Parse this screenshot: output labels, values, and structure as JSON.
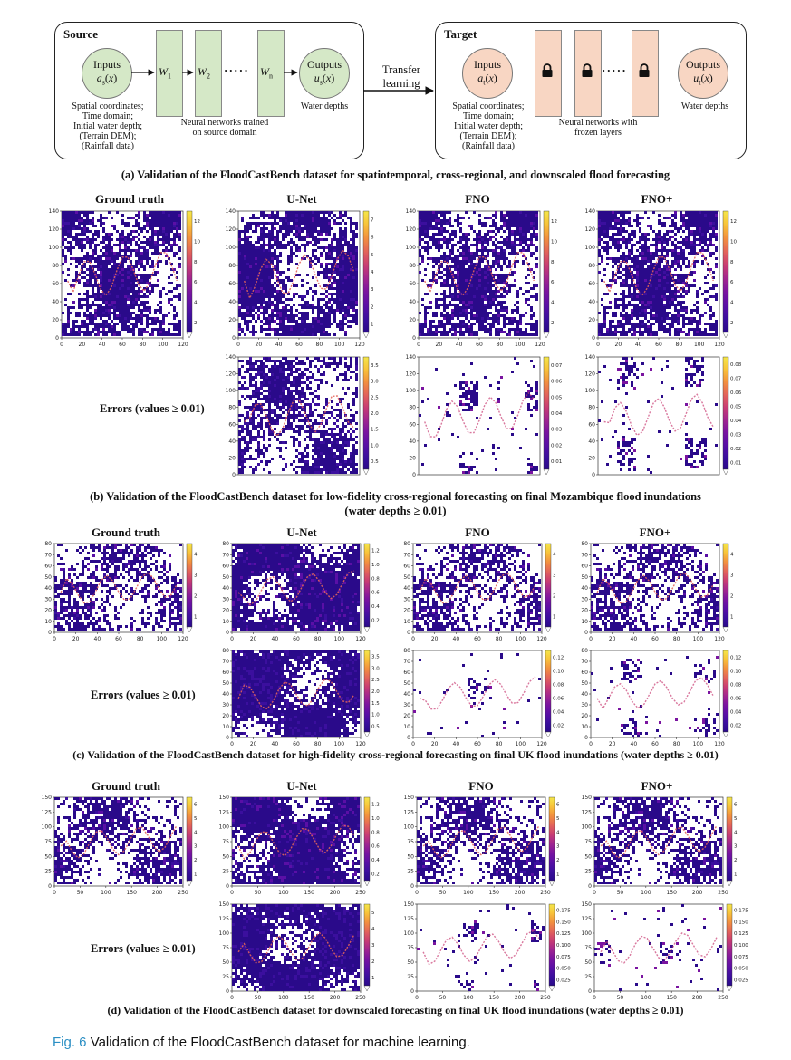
{
  "panel_a": {
    "source": {
      "title": "Source",
      "inputs_label": "Inputs",
      "inputs_var": "a_s(x)",
      "layers": [
        "W_1",
        "W_2",
        "W_n"
      ],
      "dots": "· · · · ·",
      "outputs_label": "Outputs",
      "outputs_var": "u_s(x)",
      "input_desc": [
        "Spatial coordinates;",
        "Time domain;",
        "Initial water depth;",
        "(Terrain DEM);",
        "(Rainfall data)"
      ],
      "network_desc": [
        "Neural networks trained",
        "on source domain"
      ],
      "output_desc": "Water depths"
    },
    "transfer": [
      "Transfer",
      "learning"
    ],
    "target": {
      "title": "Target",
      "inputs_label": "Inputs",
      "inputs_var": "a_t(x)",
      "dots": "· · · · ·",
      "outputs_label": "Outputs",
      "outputs_var": "u_t(x)",
      "input_desc": [
        "Spatial coordinates;",
        "Time domain;",
        "Initial water depth;",
        "(Terrain DEM);",
        "(Rainfall data)"
      ],
      "network_desc": [
        "Neural networks with",
        "frozen layers"
      ],
      "output_desc": "Water depths",
      "layer_icon": "lock-icon"
    },
    "caption": "(a) Validation of the FloodCastBench dataset for spatiotemporal, cross-regional, and downscaled flood forecasting"
  },
  "panel_b": {
    "col_titles": [
      "Ground truth",
      "U-Net",
      "FNO",
      "FNO+"
    ],
    "error_label": "Errors (values ≥ 0.01)",
    "caption_line1": "(b) Validation of the FloodCastBench dataset for low-fidelity cross-regional forecasting on final Mozambique flood inundations",
    "caption_line2": "(water depths ≥ 0.01)",
    "x_ticks": [
      "0",
      "20",
      "40",
      "60",
      "80",
      "100",
      "120"
    ],
    "y_ticks": [
      "0",
      "20",
      "40",
      "60",
      "80",
      "100",
      "120",
      "140"
    ],
    "colorbars": {
      "gt": [
        "2",
        "4",
        "6",
        "8",
        "10",
        "12"
      ],
      "unet": [
        "1",
        "2",
        "3",
        "4",
        "5",
        "6",
        "7"
      ],
      "fno": [
        "2",
        "4",
        "6",
        "8",
        "10",
        "12"
      ],
      "fnop": [
        "2",
        "4",
        "6",
        "8",
        "10",
        "12"
      ],
      "unet_err": [
        "0.5",
        "1.0",
        "1.5",
        "2.0",
        "2.5",
        "3.0",
        "3.5"
      ],
      "fno_err": [
        "0.01",
        "0.02",
        "0.03",
        "0.04",
        "0.05",
        "0.06",
        "0.07"
      ],
      "fnop_err": [
        "0.01",
        "0.02",
        "0.03",
        "0.04",
        "0.05",
        "0.06",
        "0.07",
        "0.08"
      ]
    }
  },
  "panel_c": {
    "col_titles": [
      "Ground truth",
      "U-Net",
      "FNO",
      "FNO+"
    ],
    "error_label": "Errors (values ≥ 0.01)",
    "caption": "(c) Validation of the FloodCastBench dataset for high-fidelity cross-regional forecasting on final UK flood inundations (water depths ≥ 0.01)",
    "x_ticks": [
      "0",
      "20",
      "40",
      "60",
      "80",
      "100",
      "120"
    ],
    "y_ticks": [
      "0",
      "10",
      "20",
      "30",
      "40",
      "50",
      "60",
      "70",
      "80"
    ],
    "colorbars": {
      "gt": [
        "1",
        "2",
        "3",
        "4"
      ],
      "unet": [
        "0.2",
        "0.4",
        "0.6",
        "0.8",
        "1.0",
        "1.2"
      ],
      "fno": [
        "1",
        "2",
        "3",
        "4"
      ],
      "fnop": [
        "1",
        "2",
        "3",
        "4"
      ],
      "unet_err": [
        "0.5",
        "1.0",
        "1.5",
        "2.0",
        "2.5",
        "3.0",
        "3.5"
      ],
      "fno_err": [
        "0.02",
        "0.04",
        "0.06",
        "0.08",
        "0.10",
        "0.12"
      ],
      "fnop_err": [
        "0.02",
        "0.04",
        "0.06",
        "0.08",
        "0.10",
        "0.12"
      ]
    }
  },
  "panel_d": {
    "col_titles": [
      "Ground truth",
      "U-Net",
      "FNO",
      "FNO+"
    ],
    "error_label": "Errors (values ≥ 0.01)",
    "caption": "(d) Validation of the FloodCastBench dataset for downscaled forecasting on final UK flood inundations (water depths ≥ 0.01)",
    "x_ticks": [
      "0",
      "50",
      "100",
      "150",
      "200",
      "250"
    ],
    "y_ticks": [
      "0",
      "25",
      "50",
      "75",
      "100",
      "125",
      "150"
    ],
    "colorbars": {
      "gt": [
        "1",
        "2",
        "3",
        "4",
        "5",
        "6"
      ],
      "unet": [
        "0.2",
        "0.4",
        "0.6",
        "0.8",
        "1.0",
        "1.2"
      ],
      "fno": [
        "1",
        "2",
        "3",
        "4",
        "5",
        "6"
      ],
      "fnop": [
        "1",
        "2",
        "3",
        "4",
        "5",
        "6"
      ],
      "unet_err": [
        "1",
        "2",
        "3",
        "4",
        "5"
      ],
      "fno_err": [
        "0.025",
        "0.050",
        "0.075",
        "0.100",
        "0.125",
        "0.150",
        "0.175"
      ],
      "fnop_err": [
        "0.025",
        "0.050",
        "0.075",
        "0.100",
        "0.125",
        "0.150",
        "0.175"
      ]
    }
  },
  "figure_caption": {
    "label": "Fig. 6",
    "text": "Validation of the FloodCastBench dataset for machine learning."
  }
}
